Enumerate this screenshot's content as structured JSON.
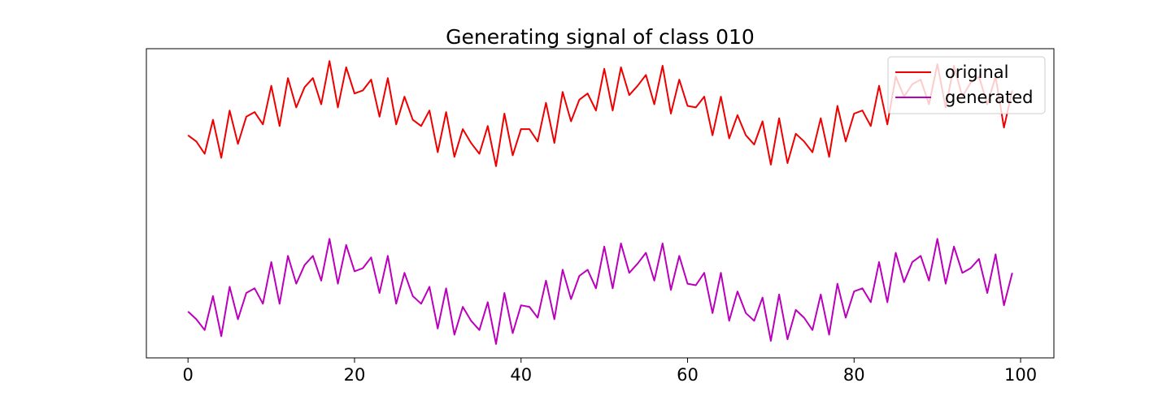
{
  "chart_data": {
    "type": "line",
    "title": "Generating signal of class 010",
    "xlabel": "",
    "ylabel": "",
    "xlim": [
      -5,
      104
    ],
    "ylim": [
      0,
      100
    ],
    "xticks": [
      0,
      20,
      40,
      60,
      80,
      100
    ],
    "yticks_visible": false,
    "grid": false,
    "legend_position": "top-right",
    "x": [
      0,
      1,
      2,
      3,
      4,
      5,
      6,
      7,
      8,
      9,
      10,
      11,
      12,
      13,
      14,
      15,
      16,
      17,
      18,
      19,
      20,
      21,
      22,
      23,
      24,
      25,
      26,
      27,
      28,
      29,
      30,
      31,
      32,
      33,
      34,
      35,
      36,
      37,
      38,
      39,
      40,
      41,
      42,
      43,
      44,
      45,
      46,
      47,
      48,
      49,
      50,
      51,
      52,
      53,
      54,
      55,
      56,
      57,
      58,
      59,
      60,
      61,
      62,
      63,
      64,
      65,
      66,
      67,
      68,
      69,
      70,
      71,
      72,
      73,
      74,
      75,
      76,
      77,
      78,
      79,
      80,
      81,
      82,
      83,
      84,
      85,
      86,
      87,
      88,
      89,
      90,
      91,
      92,
      93,
      94,
      95,
      96,
      97,
      98,
      99
    ],
    "series": [
      {
        "name": "original",
        "color": "#ee0000",
        "values": [
          72.0,
          70.0,
          66.0,
          77.0,
          64.7,
          80.0,
          69.2,
          78.0,
          79.5,
          75.5,
          88.0,
          75.0,
          90.5,
          81.0,
          87.5,
          90.5,
          82.0,
          96.0,
          81.0,
          94.0,
          85.5,
          86.5,
          90.0,
          78.0,
          90.5,
          75.5,
          84.5,
          77.0,
          75.0,
          80.0,
          66.5,
          79.5,
          65.0,
          74.0,
          69.5,
          66.0,
          75.0,
          62.0,
          79.0,
          65.5,
          74.0,
          74.0,
          70.0,
          82.5,
          69.5,
          86.0,
          76.5,
          83.5,
          85.5,
          80.0,
          93.5,
          80.0,
          94.0,
          85.0,
          88.0,
          91.5,
          82.0,
          94.5,
          79.0,
          90.0,
          81.5,
          81.0,
          84.5,
          72.0,
          84.5,
          71.0,
          78.5,
          72.0,
          69.0,
          76.5,
          62.5,
          77.5,
          63.0,
          72.5,
          70.0,
          66.5,
          77.5,
          65.0,
          81.5,
          70.0,
          79.0,
          80.0,
          75.0,
          88.0,
          75.5,
          91.0,
          84.5,
          88.5,
          90.0,
          82.0,
          95.0,
          81.0,
          94.5,
          84.5,
          89.0,
          91.0,
          82.0,
          91.0,
          74.5,
          86.5
        ]
      },
      {
        "name": "generated",
        "color": "#bb00bb",
        "values": [
          15.0,
          12.5,
          9.0,
          20.0,
          7.0,
          23.0,
          12.5,
          21.0,
          22.5,
          17.5,
          31.0,
          17.5,
          33.0,
          24.0,
          30.0,
          33.0,
          25.0,
          38.5,
          24.0,
          36.5,
          28.0,
          29.0,
          32.5,
          21.0,
          33.0,
          17.5,
          27.5,
          20.0,
          17.5,
          23.0,
          9.5,
          22.5,
          7.5,
          16.5,
          12.0,
          9.0,
          18.0,
          4.5,
          21.0,
          8.0,
          17.0,
          16.5,
          13.0,
          25.0,
          12.5,
          28.5,
          19.0,
          26.5,
          28.5,
          22.5,
          36.0,
          22.5,
          37.0,
          27.5,
          30.5,
          34.0,
          25.0,
          37.0,
          22.0,
          33.0,
          24.0,
          23.5,
          27.5,
          14.5,
          27.5,
          12.0,
          21.5,
          14.5,
          12.0,
          19.5,
          5.5,
          20.5,
          6.0,
          15.5,
          13.0,
          9.0,
          20.5,
          7.5,
          24.0,
          13.0,
          21.5,
          22.5,
          18.0,
          31.0,
          18.0,
          34.0,
          24.5,
          31.0,
          33.0,
          25.0,
          38.5,
          24.0,
          36.0,
          27.5,
          29.0,
          32.0,
          21.0,
          33.5,
          17.0,
          27.5
        ]
      }
    ]
  }
}
